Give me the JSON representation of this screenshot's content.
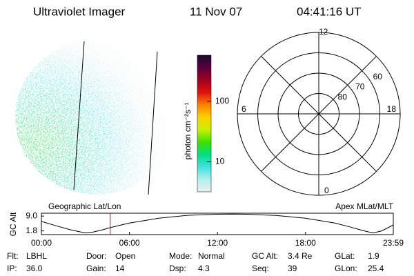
{
  "header": {
    "title": "Ultraviolet Imager",
    "date": "11 Nov 07",
    "time": "04:41:16 UT"
  },
  "colorbar": {
    "label": "photon cm⁻²s⁻¹",
    "scale": "log",
    "lim": [
      3.2,
      575
    ],
    "ticks": [
      10,
      100
    ],
    "colors": [
      "#1a0a2e",
      "#5a0040",
      "#a00020",
      "#e01010",
      "#ff8000",
      "#ffd000",
      "#c8f000",
      "#40e000",
      "#00e080",
      "#40e0e0",
      "#b0f0f0",
      "#e8f0f0"
    ]
  },
  "polar": {
    "lim": [
      50,
      90
    ],
    "ring_ticks": [
      80,
      70,
      60
    ],
    "mlt_ticks": [
      12,
      18,
      6,
      0
    ]
  },
  "altitude_plot": {
    "type": "line",
    "left_title": "Geographic Lat/Lon",
    "right_title": "Apex MLat/MLT",
    "ylabel": "GC Alt",
    "xlim": [
      0,
      23.983
    ],
    "xticks": [
      {
        "value": 0,
        "label": "00:00"
      },
      {
        "value": 6,
        "label": "06:00"
      },
      {
        "value": 12,
        "label": "12:00"
      },
      {
        "value": 18,
        "label": "18:00"
      },
      {
        "value": 23.983,
        "label": "23:59"
      }
    ],
    "ylim": [
      0,
      10.4
    ],
    "yticks": [
      {
        "value": 9,
        "label": "9.0"
      },
      1.8
    ],
    "x": [
      0,
      1,
      2,
      3,
      3.5,
      4,
      4.69,
      6,
      8,
      10,
      12,
      13,
      14,
      16,
      18,
      20,
      21,
      22,
      22.6,
      23.2,
      23.983
    ],
    "values": [
      6.4,
      4.3,
      2.3,
      0.8,
      1.2,
      2.0,
      3.4,
      5.6,
      8.0,
      9.4,
      9.9,
      10.0,
      9.9,
      9.3,
      8.0,
      5.6,
      3.8,
      1.8,
      0.8,
      1.8,
      4.7
    ],
    "color": "#000000",
    "marker_x": 4.688,
    "marker_color": "#cc0000"
  },
  "status": [
    [
      {
        "label": "Flt:",
        "value": "LBHL"
      },
      {
        "label": "Door:",
        "value": "Open"
      },
      {
        "label": "Mode:",
        "value": "Normal"
      },
      {
        "label": "GC Alt:",
        "value": "3.4 Re"
      },
      {
        "label": "GLat:",
        "value": "1.9"
      }
    ],
    [
      {
        "label": "IP:",
        "value": "36.0"
      },
      {
        "label": "Gain:",
        "value": "14"
      },
      {
        "label": "Dsp:",
        "value": "4.3"
      },
      {
        "label": "Seq:",
        "value": "39"
      },
      {
        "label": "GLon:",
        "value": "25.4"
      }
    ]
  ]
}
